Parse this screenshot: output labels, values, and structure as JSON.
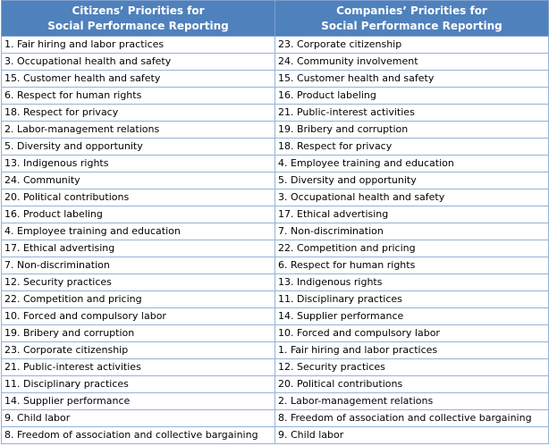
{
  "table": {
    "headers": [
      [
        "Citizens’ Priorities for",
        "Social Performance Reporting"
      ],
      [
        "Companies’ Priorities for",
        "Social Performance Reporting"
      ]
    ],
    "rows": [
      [
        "1. Fair hiring and labor practices",
        "23. Corporate citizenship"
      ],
      [
        "3. Occupational health and safety",
        "24. Community involvement"
      ],
      [
        "15. Customer health and safety",
        "15. Customer health and safety"
      ],
      [
        "6. Respect for human rights",
        "16. Product labeling"
      ],
      [
        "18. Respect for privacy",
        "21. Public-interest activities"
      ],
      [
        "2. Labor-management relations",
        "19. Bribery and corruption"
      ],
      [
        "5. Diversity and opportunity",
        "18. Respect for privacy"
      ],
      [
        "13. Indigenous rights",
        "4. Employee training and education"
      ],
      [
        "24. Community",
        "5. Diversity and opportunity"
      ],
      [
        "20. Political contributions",
        "3. Occupational health and safety"
      ],
      [
        "16. Product labeling",
        "17. Ethical advertising"
      ],
      [
        "4. Employee training and education",
        "7. Non-discrimination"
      ],
      [
        "17. Ethical advertising",
        "22. Competition and pricing"
      ],
      [
        "7. Non-discrimination",
        "6. Respect for human rights"
      ],
      [
        "12. Security practices",
        "13. Indigenous rights"
      ],
      [
        "22. Competition and pricing",
        "11. Disciplinary practices"
      ],
      [
        "10. Forced and compulsory labor",
        "14. Supplier performance"
      ],
      [
        "19. Bribery and corruption",
        "10. Forced and compulsory labor"
      ],
      [
        "23. Corporate citizenship",
        "1. Fair hiring and labor practices"
      ],
      [
        "21. Public-interest activities",
        "12. Security practices"
      ],
      [
        "11. Disciplinary practices",
        "20. Political contributions"
      ],
      [
        "14. Supplier performance",
        "2. Labor-management relations"
      ],
      [
        "9. Child labor",
        "8. Freedom of association and collective bargaining"
      ],
      [
        "8. Freedom of association and collective bargaining",
        "9. Child labor"
      ]
    ]
  }
}
